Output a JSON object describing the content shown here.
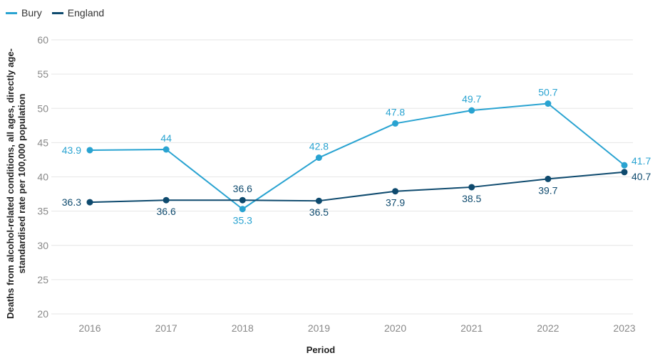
{
  "chart_data": {
    "type": "line",
    "x": [
      "2016",
      "2017",
      "2018",
      "2019",
      "2020",
      "2021",
      "2022",
      "2023"
    ],
    "xlabel": "Period",
    "ylabel": "Deaths from alcohol-related conditions, all ages, directly age-standardised rate per 100,000 population",
    "ylabel_lines": [
      "Deaths from alcohol-related conditions, all ages, directly age-",
      "standardised rate per 100,000 population"
    ],
    "ylim": [
      20,
      60
    ],
    "yticks": [
      20,
      25,
      30,
      35,
      40,
      45,
      50,
      55,
      60
    ],
    "grid": true,
    "legend_position": "top-left",
    "series": [
      {
        "name": "Bury",
        "color": "#29a3d1",
        "values": [
          43.9,
          44,
          35.3,
          42.8,
          47.8,
          49.7,
          50.7,
          41.7
        ],
        "labels": [
          "43.9",
          "44",
          "35.3",
          "42.8",
          "47.8",
          "49.7",
          "50.7",
          "41.7"
        ]
      },
      {
        "name": "England",
        "color": "#0e4a6e",
        "values": [
          36.3,
          36.6,
          36.6,
          36.5,
          37.9,
          38.5,
          39.7,
          40.7
        ],
        "labels": [
          "36.3",
          "36.6",
          "36.6",
          "36.5",
          "37.9",
          "38.5",
          "39.7",
          "40.7"
        ]
      }
    ]
  }
}
